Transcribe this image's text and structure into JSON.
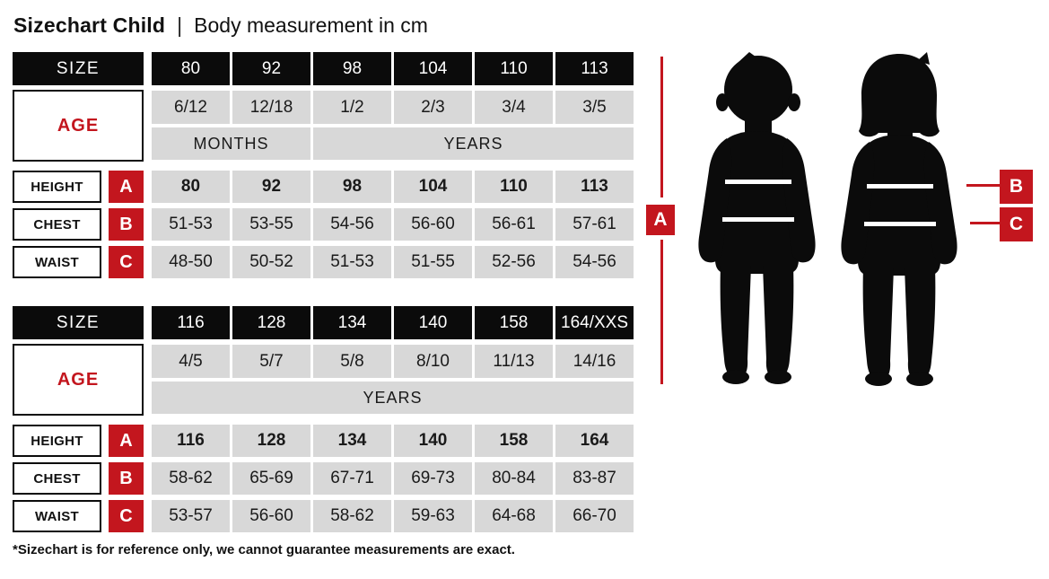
{
  "title": {
    "main": "Sizechart Child",
    "separator": "|",
    "subtitle": "Body measurement in cm"
  },
  "tables": [
    {
      "size_label": "SIZE",
      "age_label": "AGE",
      "sizes": [
        "80",
        "92",
        "98",
        "104",
        "110",
        "113"
      ],
      "ages": [
        "6/12",
        "12/18",
        "1/2",
        "2/3",
        "3/4",
        "3/5"
      ],
      "age_units": [
        {
          "label": "MONTHS",
          "span": 2
        },
        {
          "label": "YEARS",
          "span": 4
        }
      ],
      "rows": [
        {
          "label": "HEIGHT",
          "marker": "A",
          "bold": true,
          "values": [
            "80",
            "92",
            "98",
            "104",
            "110",
            "113"
          ]
        },
        {
          "label": "CHEST",
          "marker": "B",
          "bold": false,
          "values": [
            "51-53",
            "53-55",
            "54-56",
            "56-60",
            "56-61",
            "57-61"
          ]
        },
        {
          "label": "WAIST",
          "marker": "C",
          "bold": false,
          "values": [
            "48-50",
            "50-52",
            "51-53",
            "51-55",
            "52-56",
            "54-56"
          ]
        }
      ]
    },
    {
      "size_label": "SIZE",
      "age_label": "AGE",
      "sizes": [
        "116",
        "128",
        "134",
        "140",
        "158",
        "164/XXS"
      ],
      "ages": [
        "4/5",
        "5/7",
        "5/8",
        "8/10",
        "11/13",
        "14/16"
      ],
      "age_units": [
        {
          "label": "YEARS",
          "span": 6
        }
      ],
      "rows": [
        {
          "label": "HEIGHT",
          "marker": "A",
          "bold": true,
          "values": [
            "116",
            "128",
            "134",
            "140",
            "158",
            "164"
          ]
        },
        {
          "label": "CHEST",
          "marker": "B",
          "bold": false,
          "values": [
            "58-62",
            "65-69",
            "67-71",
            "69-73",
            "80-84",
            "83-87"
          ]
        },
        {
          "label": "WAIST",
          "marker": "C",
          "bold": false,
          "values": [
            "53-57",
            "56-60",
            "58-62",
            "59-63",
            "64-68",
            "66-70"
          ]
        }
      ]
    }
  ],
  "diagram": {
    "marker_a": "A",
    "marker_b": "B",
    "marker_c": "C"
  },
  "footnote": "*Sizechart is for reference only, we cannot guarantee measurements are exact.",
  "colors": {
    "accent_red": "#c3161e",
    "cell_black": "#0b0b0b",
    "cell_gray": "#d8d8d8",
    "silhouette_black": "#0b0b0b"
  }
}
